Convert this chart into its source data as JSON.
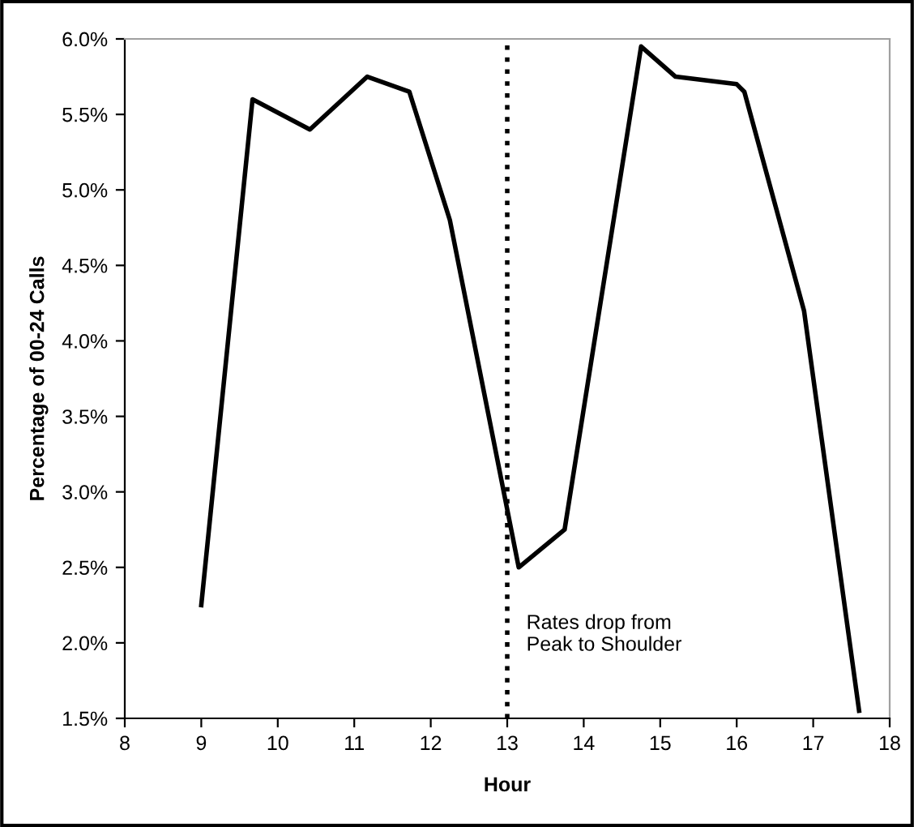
{
  "chart_data": {
    "type": "line",
    "xlabel": "Hour",
    "ylabel": "Percentage of 00-24 Calls",
    "series": [
      {
        "color": "#000000",
        "x": [
          9,
          9.67,
          10.42,
          11.17,
          11.72,
          12.25,
          13.15,
          13.75,
          14.75,
          15.2,
          16.0,
          16.1,
          16.88,
          17.6
        ],
        "values": [
          2.25,
          5.6,
          5.4,
          5.75,
          5.65,
          4.8,
          2.5,
          2.75,
          5.95,
          5.75,
          5.7,
          5.65,
          4.2,
          1.55
        ]
      }
    ],
    "xlim": [
      8,
      18
    ],
    "xticks": [
      8,
      9,
      10,
      11,
      12,
      13,
      14,
      15,
      16,
      17,
      18
    ],
    "ylim": [
      1.5,
      6.0
    ],
    "yticks": [
      {
        "value": 1.5,
        "label": "1.5%"
      },
      {
        "value": 2.0,
        "label": "2.0%"
      },
      {
        "value": 2.5,
        "label": "2.5%"
      },
      {
        "value": 3.0,
        "label": "3.0%"
      },
      {
        "value": 3.5,
        "label": "3.5%"
      },
      {
        "value": 4.0,
        "label": "4.0%"
      },
      {
        "value": 4.5,
        "label": "4.5%"
      },
      {
        "value": 5.0,
        "label": "5.0%"
      },
      {
        "value": 5.5,
        "label": "5.5%"
      },
      {
        "value": 6.0,
        "label": "6.0%"
      }
    ],
    "ref_lines": [
      {
        "axis": "x",
        "value": 13,
        "label": "Rates drop from\nPeak to Shoulder",
        "color": "#000000",
        "line_style": "dotted"
      }
    ],
    "grid": false,
    "legend": false,
    "marker": "none",
    "line_style": "solid"
  }
}
